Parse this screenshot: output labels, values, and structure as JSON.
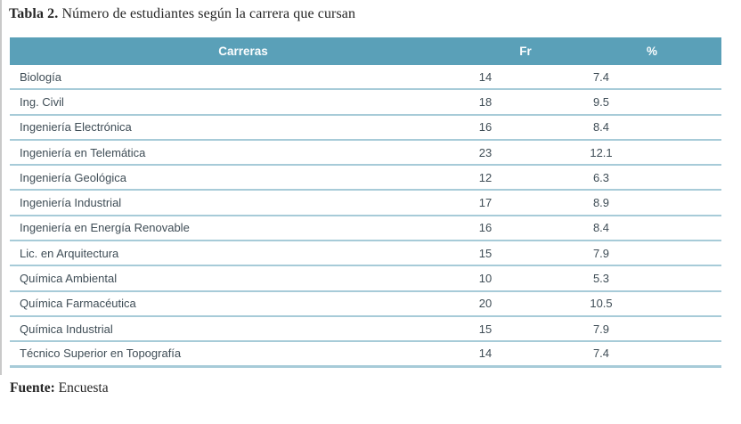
{
  "title": {
    "label": "Tabla 2.",
    "text": " Número de estudiantes según la carrera que cursan"
  },
  "table": {
    "headers": [
      "Carreras",
      "Fr",
      "%"
    ],
    "rows": [
      {
        "carrera": "Biología",
        "fr": "14",
        "pct": "7.4"
      },
      {
        "carrera": "Ing. Civil",
        "fr": "18",
        "pct": "9.5"
      },
      {
        "carrera": "Ingeniería Electrónica",
        "fr": "16",
        "pct": "8.4"
      },
      {
        "carrera": "Ingeniería en Telemática",
        "fr": "23",
        "pct": "12.1"
      },
      {
        "carrera": "Ingeniería Geológica",
        "fr": "12",
        "pct": "6.3"
      },
      {
        "carrera": "Ingeniería Industrial",
        "fr": "17",
        "pct": "8.9"
      },
      {
        "carrera": "Ingeniería en Energía Renovable",
        "fr": "16",
        "pct": "8.4"
      },
      {
        "carrera": "Lic. en Arquitectura",
        "fr": "15",
        "pct": "7.9"
      },
      {
        "carrera": "Química Ambiental",
        "fr": "10",
        "pct": "5.3"
      },
      {
        "carrera": "Química Farmacéutica",
        "fr": "20",
        "pct": "10.5"
      },
      {
        "carrera": "Química Industrial",
        "fr": "15",
        "pct": "7.9"
      },
      {
        "carrera": "Técnico Superior en Topografía",
        "fr": "14",
        "pct": "7.4"
      }
    ]
  },
  "source": {
    "label": "Fuente:",
    "text": " Encuesta"
  },
  "colors": {
    "header_bg": "#5aa0b8",
    "header_text": "#fbfdfe",
    "row_border": "#a7cbd8",
    "body_text": "#3f4d56",
    "title_text": "#262626"
  }
}
